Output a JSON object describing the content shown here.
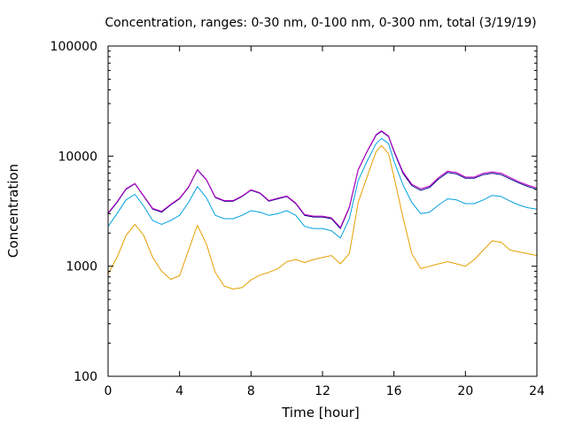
{
  "chart_data": {
    "type": "line",
    "title": "Concentration, ranges: 0-30 nm, 0-100 nm, 0-300 nm, total (3/19/19)",
    "xlabel": "Time [hour]",
    "ylabel": "Concentration",
    "xlim": [
      0,
      24
    ],
    "ylim": [
      100,
      100000
    ],
    "yscale": "log",
    "grid": false,
    "x_ticks": [
      0,
      4,
      8,
      12,
      16,
      20,
      24
    ],
    "x_tick_labels": [
      "0",
      "4",
      "8",
      "12",
      "16",
      "20",
      "24"
    ],
    "y_ticks": [
      100,
      1000,
      10000,
      100000
    ],
    "y_tick_labels": [
      "100",
      "1000",
      "10000",
      "100000"
    ],
    "series": [
      {
        "color": "#e6a000",
        "x": [
          0,
          0.5,
          1.0,
          1.5,
          2.0,
          2.5,
          3.0,
          3.5,
          4.0,
          4.5,
          5.0,
          5.5,
          6.0,
          6.5,
          7.0,
          7.5,
          8.0,
          8.5,
          9.0,
          9.5,
          10.0,
          10.5,
          11.0,
          11.5,
          12.0,
          12.5,
          13.0,
          13.5,
          14.0,
          14.5,
          15.0,
          15.3,
          15.7,
          16.0,
          16.5,
          17.0,
          17.5,
          18.0,
          18.5,
          19.0,
          19.5,
          20.0,
          20.5,
          21.0,
          21.5,
          22.0,
          22.5,
          23.0,
          23.5,
          24.0
        ],
        "y": [
          850,
          1200,
          1900,
          2400,
          1900,
          1200,
          900,
          760,
          820,
          1400,
          2350,
          1600,
          880,
          660,
          620,
          640,
          750,
          830,
          880,
          950,
          1100,
          1150,
          1080,
          1150,
          1200,
          1250,
          1050,
          1300,
          3800,
          6500,
          11000,
          12500,
          10500,
          6500,
          2800,
          1300,
          950,
          1000,
          1050,
          1100,
          1050,
          1000,
          1150,
          1400,
          1700,
          1650,
          1400,
          1350,
          1300,
          1250
        ]
      },
      {
        "color": "#00a0e0",
        "x": [
          0,
          0.5,
          1.0,
          1.5,
          2.0,
          2.5,
          3.0,
          3.5,
          4.0,
          4.5,
          5.0,
          5.5,
          6.0,
          6.5,
          7.0,
          7.5,
          8.0,
          8.5,
          9.0,
          9.5,
          10.0,
          10.5,
          11.0,
          11.5,
          12.0,
          12.5,
          13.0,
          13.5,
          14.0,
          14.5,
          15.0,
          15.3,
          15.7,
          16.0,
          16.5,
          17.0,
          17.5,
          18.0,
          18.5,
          19.0,
          19.5,
          20.0,
          20.5,
          21.0,
          21.5,
          22.0,
          22.5,
          23.0,
          23.5,
          24.0
        ],
        "y": [
          2300,
          3000,
          4000,
          4500,
          3500,
          2600,
          2400,
          2600,
          2900,
          3800,
          5300,
          4200,
          2900,
          2700,
          2700,
          2900,
          3200,
          3100,
          2900,
          3000,
          3200,
          2900,
          2300,
          2200,
          2200,
          2100,
          1800,
          2700,
          6000,
          9000,
          13000,
          14500,
          13000,
          9000,
          5500,
          3800,
          3000,
          3100,
          3600,
          4100,
          4000,
          3700,
          3700,
          4000,
          4400,
          4300,
          3900,
          3600,
          3400,
          3300
        ]
      },
      {
        "color": "#00008b",
        "x": [
          0,
          0.5,
          1.0,
          1.5,
          2.0,
          2.5,
          3.0,
          3.5,
          4.0,
          4.5,
          5.0,
          5.5,
          6.0,
          6.5,
          7.0,
          7.5,
          8.0,
          8.5,
          9.0,
          9.5,
          10.0,
          10.5,
          11.0,
          11.5,
          12.0,
          12.5,
          13.0,
          13.5,
          14.0,
          14.5,
          15.0,
          15.3,
          15.7,
          16.0,
          16.5,
          17.0,
          17.5,
          18.0,
          18.5,
          19.0,
          19.5,
          20.0,
          20.5,
          21.0,
          21.5,
          22.0,
          22.5,
          23.0,
          23.5,
          24.0
        ],
        "y": [
          3000,
          3800,
          5000,
          5600,
          4300,
          3300,
          3100,
          3600,
          4100,
          5200,
          7500,
          6100,
          4200,
          3900,
          3900,
          4300,
          4900,
          4600,
          3900,
          4100,
          4300,
          3700,
          2900,
          2800,
          2800,
          2700,
          2200,
          3400,
          7500,
          11000,
          15500,
          16800,
          15000,
          11000,
          7000,
          5400,
          4900,
          5200,
          6200,
          7100,
          6900,
          6300,
          6300,
          6800,
          7000,
          6800,
          6200,
          5700,
          5300,
          5000
        ]
      },
      {
        "color": "#c000c0",
        "x": [
          0,
          0.5,
          1.0,
          1.5,
          2.0,
          2.5,
          3.0,
          3.5,
          4.0,
          4.5,
          5.0,
          5.5,
          6.0,
          6.5,
          7.0,
          7.5,
          8.0,
          8.5,
          9.0,
          9.5,
          10.0,
          10.5,
          11.0,
          11.5,
          12.0,
          12.5,
          13.0,
          13.5,
          14.0,
          14.5,
          15.0,
          15.3,
          15.7,
          16.0,
          16.5,
          17.0,
          17.5,
          18.0,
          18.5,
          19.0,
          19.5,
          20.0,
          20.5,
          21.0,
          21.5,
          22.0,
          22.5,
          23.0,
          23.5,
          24.0
        ],
        "y": [
          3050,
          3850,
          5050,
          5650,
          4350,
          3350,
          3150,
          3650,
          4150,
          5250,
          7550,
          6150,
          4250,
          3950,
          3950,
          4350,
          4950,
          4650,
          3950,
          4150,
          4350,
          3750,
          2950,
          2850,
          2850,
          2750,
          2250,
          3450,
          7550,
          11100,
          15700,
          17000,
          15200,
          11200,
          7200,
          5550,
          5050,
          5350,
          6400,
          7300,
          7100,
          6450,
          6450,
          7000,
          7200,
          7000,
          6400,
          5850,
          5450,
          5150
        ]
      }
    ]
  }
}
